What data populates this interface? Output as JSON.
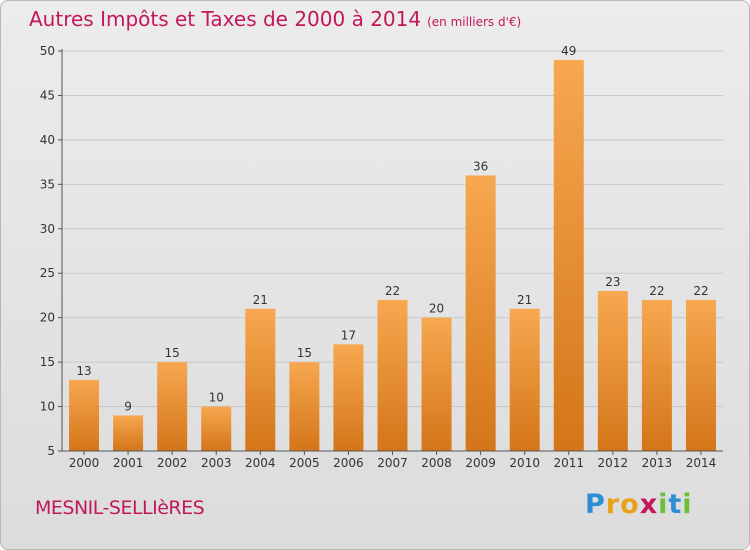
{
  "title": "Autres Impôts et Taxes de 2000 à 2014",
  "unit": "(en milliers d'€)",
  "commune": "MESNIL-SELLIèRES",
  "logo": {
    "text": "Proxiti",
    "letters": [
      {
        "ch": "P",
        "color": "#2a8fd6"
      },
      {
        "ch": "r",
        "color": "#e8a21a"
      },
      {
        "ch": "o",
        "color": "#e8a21a"
      },
      {
        "ch": "x",
        "color": "#c2185b"
      },
      {
        "ch": "i",
        "color": "#6cbf3a"
      },
      {
        "ch": "t",
        "color": "#2a8fd6"
      },
      {
        "ch": "i",
        "color": "#6cbf3a"
      }
    ]
  },
  "colors": {
    "bar_top": "#f7a850",
    "bar_bottom": "#d47519",
    "accent": "#c2185b"
  },
  "chart_data": {
    "type": "bar",
    "categories": [
      "2000",
      "2001",
      "2002",
      "2003",
      "2004",
      "2005",
      "2006",
      "2007",
      "2008",
      "2009",
      "2010",
      "2011",
      "2012",
      "2013",
      "2014"
    ],
    "values": [
      13,
      9,
      15,
      10,
      21,
      15,
      17,
      22,
      20,
      36,
      21,
      49,
      23,
      22,
      22
    ],
    "ylim": [
      5,
      50
    ],
    "yticks": [
      5,
      10,
      15,
      20,
      25,
      30,
      35,
      40,
      45,
      50
    ],
    "grid": true,
    "data_labels": true
  }
}
